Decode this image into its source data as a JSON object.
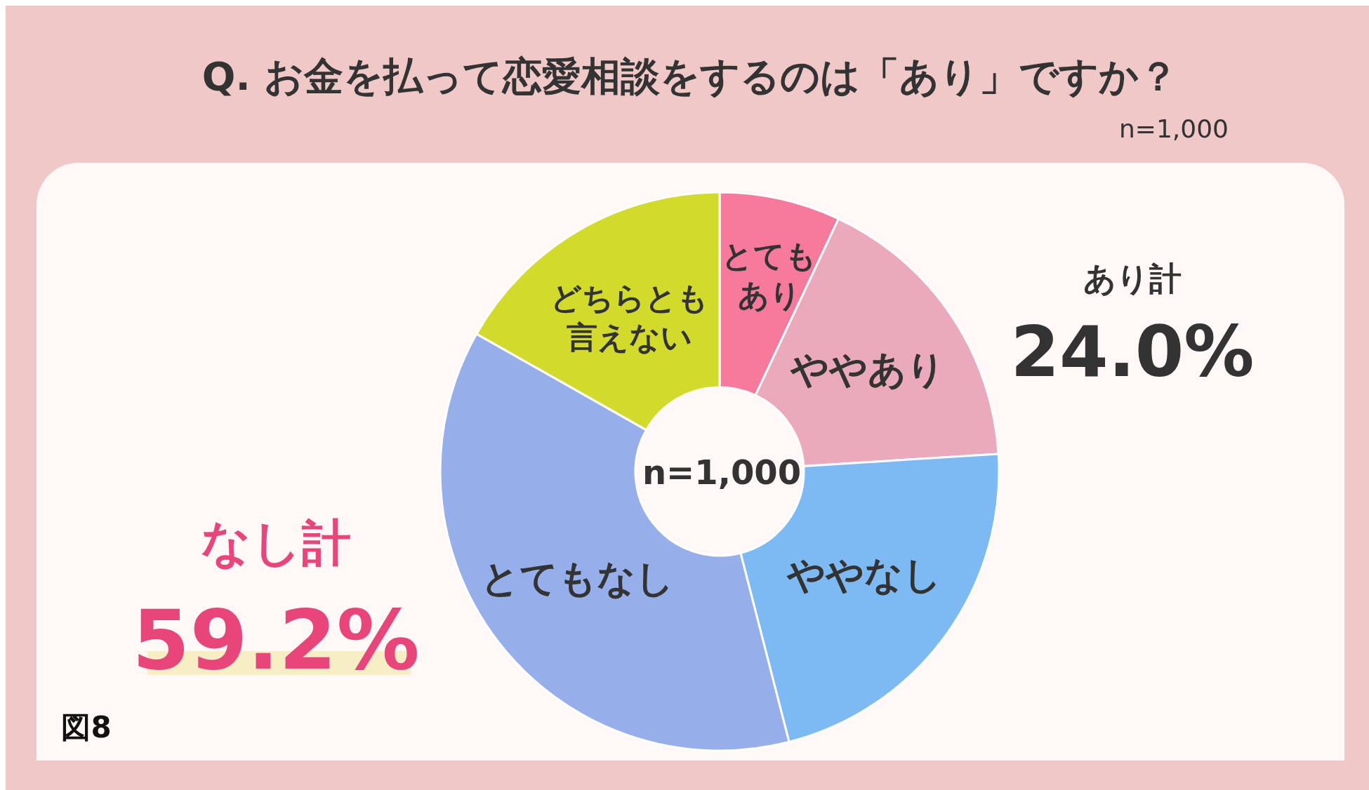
{
  "chart_data": {
    "type": "donut",
    "title": "Q. お金を払って恋愛相談をするのは「あり」ですか？",
    "subtitle": "n=1,000",
    "categories": [
      "とてもあり",
      "ややあり",
      "ややなし",
      "とてもなし",
      "どちらとも言えない"
    ],
    "values": [
      7.0,
      17.0,
      22.0,
      37.2,
      16.8
    ],
    "colors": [
      "#f77a9c",
      "#ebaabb",
      "#7db9f2",
      "#96aee9",
      "#d2da2c"
    ],
    "annotations": [
      "n=1,000",
      "あり計",
      "24.0%",
      "なし計",
      "59.2%",
      "図8"
    ]
  }
}
